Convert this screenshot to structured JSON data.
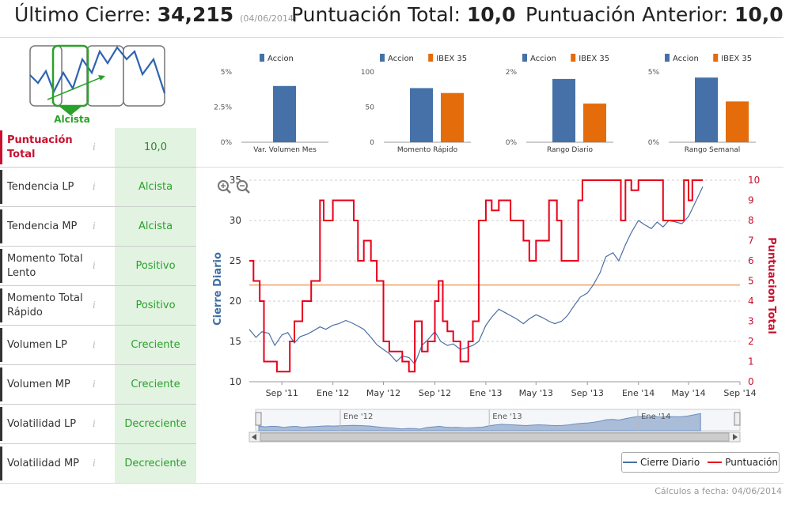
{
  "header": {
    "last_close_label": "Último Cierre:",
    "last_close_value": "34,215",
    "last_close_date": "(04/06/2014)",
    "total_score_label": "Puntuación Total:",
    "total_score_value": "10,0",
    "prev_score_label": "Puntuación Anterior:",
    "prev_score_value": "10,0"
  },
  "trend": {
    "label": "Alcista"
  },
  "factors": [
    {
      "label": "Puntuación Total",
      "value": "10,0",
      "info": "i"
    },
    {
      "label": "Tendencia LP",
      "value": "Alcista",
      "info": "i"
    },
    {
      "label": "Tendencia MP",
      "value": "Alcista",
      "info": "i"
    },
    {
      "label": "Momento Total Lento",
      "value": "Positivo",
      "info": "i"
    },
    {
      "label": "Momento Total Rápido",
      "value": "Positivo",
      "info": "i"
    },
    {
      "label": "Volumen LP",
      "value": "Creciente",
      "info": "i"
    },
    {
      "label": "Volumen MP",
      "value": "Creciente",
      "info": "i"
    },
    {
      "label": "Volatilidad LP",
      "value": "Decreciente",
      "info": "i"
    },
    {
      "label": "Volatilidad MP",
      "value": "Decreciente",
      "info": "i"
    }
  ],
  "colors": {
    "accion": "#4571a8",
    "ibex": "#e46c0a",
    "close_line": "#4a6fa5",
    "score_line": "#e8001c",
    "threshold": "#f0a060",
    "green": "#2aa12a"
  },
  "footer": {
    "calc_date": "Cálculos a fecha: 04/06/2014"
  },
  "legend": {
    "close": "Cierre Diario",
    "score": "Puntuación"
  },
  "chart_data": [
    {
      "type": "bar",
      "legend": [
        "Accion"
      ],
      "categories": [
        "Var. Volumen Mes"
      ],
      "series": [
        {
          "name": "Accion",
          "values": [
            4.0
          ]
        }
      ],
      "yticks": [
        "5%",
        "2.5%",
        "0%"
      ],
      "ylim": [
        0,
        5
      ]
    },
    {
      "type": "bar",
      "legend": [
        "Accion",
        "IBEX 35"
      ],
      "categories": [
        "Momento Rápido"
      ],
      "series": [
        {
          "name": "Accion",
          "values": [
            77
          ]
        },
        {
          "name": "IBEX 35",
          "values": [
            70
          ]
        }
      ],
      "yticks": [
        "100",
        "50",
        "0"
      ],
      "ylim": [
        0,
        100
      ]
    },
    {
      "type": "bar",
      "legend": [
        "Accion",
        "IBEX 35"
      ],
      "categories": [
        "Rango Diario"
      ],
      "series": [
        {
          "name": "Accion",
          "values": [
            1.8
          ]
        },
        {
          "name": "IBEX 35",
          "values": [
            1.1
          ]
        }
      ],
      "yticks": [
        "2%",
        "0%"
      ],
      "ylim": [
        0,
        2
      ]
    },
    {
      "type": "bar",
      "legend": [
        "Accion",
        "IBEX 35"
      ],
      "categories": [
        "Rango Semanal"
      ],
      "series": [
        {
          "name": "Accion",
          "values": [
            4.6
          ]
        },
        {
          "name": "IBEX 35",
          "values": [
            2.9
          ]
        }
      ],
      "yticks": [
        "5%",
        "0%"
      ],
      "ylim": [
        0,
        5
      ]
    },
    {
      "type": "line",
      "ylabel_left": "Cierre Diario",
      "ylabel_right": "Puntuacion Total",
      "ylim_left": [
        10,
        35
      ],
      "ylim_right": [
        0,
        10
      ],
      "yticks_left": [
        "10",
        "15",
        "20",
        "25",
        "30",
        "35"
      ],
      "yticks_right": [
        "0",
        "1",
        "2",
        "3",
        "4",
        "5",
        "6",
        "7",
        "8",
        "9",
        "10"
      ],
      "xlim": [
        "2011-06-15",
        "2014-09-01"
      ],
      "xticks": [
        {
          "date": "2011-09-01",
          "label": "Sep '11"
        },
        {
          "date": "2012-01-01",
          "label": "Ene '12"
        },
        {
          "date": "2012-05-01",
          "label": "May '12"
        },
        {
          "date": "2012-09-01",
          "label": "Sep '12"
        },
        {
          "date": "2013-01-01",
          "label": "Ene '13"
        },
        {
          "date": "2013-05-01",
          "label": "May '13"
        },
        {
          "date": "2013-09-01",
          "label": "Sep '13"
        },
        {
          "date": "2014-01-01",
          "label": "Ene '14"
        },
        {
          "date": "2014-05-01",
          "label": "May '14"
        },
        {
          "date": "2014-09-01",
          "label": "Sep '14"
        }
      ],
      "threshold": 4.8,
      "navigator_labels": [
        "Ene '12",
        "Ene '13",
        "Ene '14"
      ],
      "series": [
        {
          "name": "Cierre Diario",
          "axis": "left",
          "points": [
            [
              "2011-06-15",
              16.5
            ],
            [
              "2011-07-01",
              15.5
            ],
            [
              "2011-07-15",
              16.2
            ],
            [
              "2011-08-01",
              16.0
            ],
            [
              "2011-08-15",
              14.5
            ],
            [
              "2011-09-01",
              15.8
            ],
            [
              "2011-09-15",
              16.1
            ],
            [
              "2011-10-01",
              14.8
            ],
            [
              "2011-10-15",
              15.6
            ],
            [
              "2011-11-01",
              15.9
            ],
            [
              "2011-11-15",
              16.3
            ],
            [
              "2011-12-01",
              16.8
            ],
            [
              "2011-12-15",
              16.5
            ],
            [
              "2012-01-01",
              17.0
            ],
            [
              "2012-01-15",
              17.2
            ],
            [
              "2012-02-01",
              17.6
            ],
            [
              "2012-02-15",
              17.3
            ],
            [
              "2012-03-01",
              16.9
            ],
            [
              "2012-03-15",
              16.5
            ],
            [
              "2012-04-01",
              15.5
            ],
            [
              "2012-04-15",
              14.6
            ],
            [
              "2012-05-01",
              14.0
            ],
            [
              "2012-05-15",
              13.5
            ],
            [
              "2012-06-01",
              12.5
            ],
            [
              "2012-06-15",
              13.2
            ],
            [
              "2012-07-01",
              13.0
            ],
            [
              "2012-07-15",
              12.2
            ],
            [
              "2012-08-01",
              14.5
            ],
            [
              "2012-08-15",
              15.2
            ],
            [
              "2012-09-01",
              16.2
            ],
            [
              "2012-09-15",
              15.0
            ],
            [
              "2012-10-01",
              14.5
            ],
            [
              "2012-10-15",
              14.7
            ],
            [
              "2012-11-01",
              14.0
            ],
            [
              "2012-11-15",
              14.2
            ],
            [
              "2012-12-01",
              14.5
            ],
            [
              "2012-12-15",
              15.0
            ],
            [
              "2013-01-01",
              17.0
            ],
            [
              "2013-01-15",
              18.0
            ],
            [
              "2013-02-01",
              19.0
            ],
            [
              "2013-02-15",
              18.6
            ],
            [
              "2013-03-01",
              18.2
            ],
            [
              "2013-03-15",
              17.8
            ],
            [
              "2013-04-01",
              17.2
            ],
            [
              "2013-04-15",
              17.8
            ],
            [
              "2013-05-01",
              18.3
            ],
            [
              "2013-05-15",
              18.0
            ],
            [
              "2013-06-01",
              17.5
            ],
            [
              "2013-06-15",
              17.2
            ],
            [
              "2013-07-01",
              17.5
            ],
            [
              "2013-07-15",
              18.2
            ],
            [
              "2013-08-01",
              19.5
            ],
            [
              "2013-08-15",
              20.5
            ],
            [
              "2013-09-01",
              21.0
            ],
            [
              "2013-09-15",
              22.0
            ],
            [
              "2013-10-01",
              23.5
            ],
            [
              "2013-10-15",
              25.5
            ],
            [
              "2013-11-01",
              26.0
            ],
            [
              "2013-11-15",
              25.0
            ],
            [
              "2013-12-01",
              27.0
            ],
            [
              "2013-12-15",
              28.5
            ],
            [
              "2014-01-01",
              30.0
            ],
            [
              "2014-01-15",
              29.5
            ],
            [
              "2014-02-01",
              29.0
            ],
            [
              "2014-02-15",
              29.8
            ],
            [
              "2014-03-01",
              29.2
            ],
            [
              "2014-03-15",
              30.0
            ],
            [
              "2014-04-01",
              29.8
            ],
            [
              "2014-04-15",
              29.6
            ],
            [
              "2014-05-01",
              30.5
            ],
            [
              "2014-05-15",
              32.0
            ],
            [
              "2014-06-04",
              34.2
            ]
          ]
        },
        {
          "name": "Puntuación",
          "axis": "right",
          "points": [
            [
              "2011-06-15",
              6
            ],
            [
              "2011-06-25",
              5
            ],
            [
              "2011-07-10",
              4
            ],
            [
              "2011-07-20",
              1
            ],
            [
              "2011-08-20",
              0.5
            ],
            [
              "2011-09-20",
              2
            ],
            [
              "2011-10-01",
              3
            ],
            [
              "2011-10-20",
              4
            ],
            [
              "2011-11-10",
              5
            ],
            [
              "2011-12-01",
              9
            ],
            [
              "2011-12-10",
              8
            ],
            [
              "2012-01-01",
              9
            ],
            [
              "2012-02-01",
              9
            ],
            [
              "2012-02-20",
              8
            ],
            [
              "2012-03-01",
              6
            ],
            [
              "2012-03-15",
              7
            ],
            [
              "2012-04-01",
              6
            ],
            [
              "2012-04-15",
              5
            ],
            [
              "2012-05-01",
              2
            ],
            [
              "2012-05-15",
              1.5
            ],
            [
              "2012-06-15",
              1
            ],
            [
              "2012-07-01",
              0.5
            ],
            [
              "2012-07-15",
              3
            ],
            [
              "2012-08-01",
              1.5
            ],
            [
              "2012-08-15",
              2
            ],
            [
              "2012-09-01",
              4
            ],
            [
              "2012-09-10",
              5
            ],
            [
              "2012-09-20",
              3
            ],
            [
              "2012-10-01",
              2.5
            ],
            [
              "2012-10-15",
              2
            ],
            [
              "2012-11-01",
              1
            ],
            [
              "2012-11-20",
              2
            ],
            [
              "2012-12-01",
              3
            ],
            [
              "2012-12-15",
              8
            ],
            [
              "2013-01-01",
              9
            ],
            [
              "2013-01-15",
              8.5
            ],
            [
              "2013-02-01",
              9
            ],
            [
              "2013-03-01",
              8
            ],
            [
              "2013-04-01",
              7
            ],
            [
              "2013-04-15",
              6
            ],
            [
              "2013-05-01",
              7
            ],
            [
              "2013-06-01",
              9
            ],
            [
              "2013-06-20",
              8
            ],
            [
              "2013-07-01",
              6
            ],
            [
              "2013-08-01",
              6
            ],
            [
              "2013-08-10",
              9
            ],
            [
              "2013-08-20",
              10
            ],
            [
              "2013-09-01",
              10
            ],
            [
              "2013-10-01",
              10
            ],
            [
              "2013-11-01",
              10
            ],
            [
              "2013-11-20",
              8
            ],
            [
              "2013-12-01",
              10
            ],
            [
              "2013-12-15",
              9.5
            ],
            [
              "2014-01-01",
              10
            ],
            [
              "2014-02-01",
              10
            ],
            [
              "2014-03-01",
              8
            ],
            [
              "2014-04-01",
              8
            ],
            [
              "2014-04-20",
              10
            ],
            [
              "2014-05-01",
              9
            ],
            [
              "2014-05-10",
              10
            ],
            [
              "2014-06-04",
              10
            ]
          ]
        }
      ]
    }
  ]
}
